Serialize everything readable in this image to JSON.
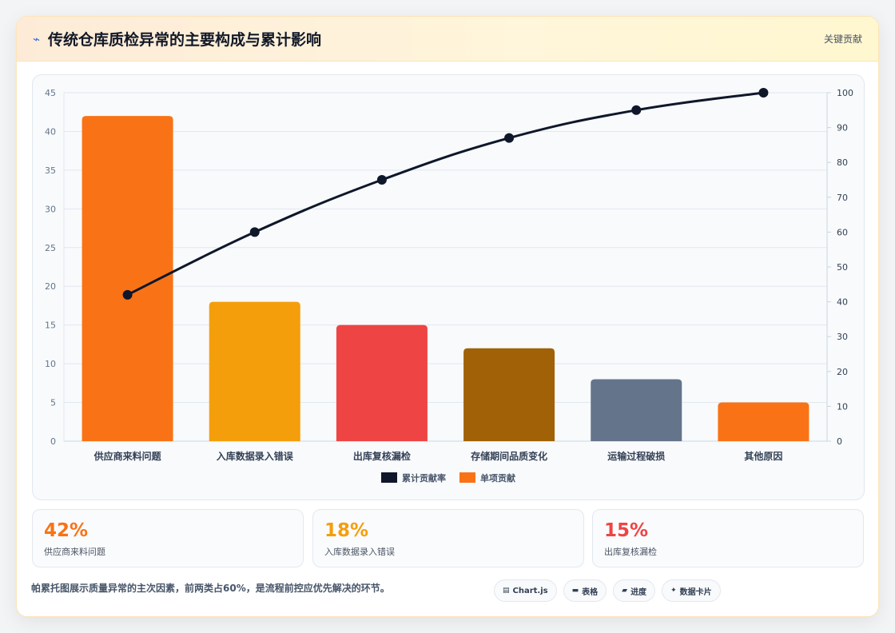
{
  "header": {
    "icon": "bolt-icon",
    "title": "传统仓库质检异常的主要构成与累计影响",
    "right_label": "关键贡献"
  },
  "chart_data": {
    "type": "bar",
    "categories": [
      "供应商来料问题",
      "入库数据录入错误",
      "出库复核漏检",
      "存储期间品质变化",
      "运输过程破损",
      "其他原因"
    ],
    "series": [
      {
        "name": "单项贡献",
        "type": "bar",
        "values": [
          42,
          18,
          15,
          12,
          8,
          5
        ],
        "colors": [
          "#f97316",
          "#f59e0b",
          "#ef4444",
          "#a16207",
          "#64748b",
          "#f97316"
        ],
        "axis": "left"
      },
      {
        "name": "累计贡献率",
        "type": "line",
        "values": [
          42,
          60,
          75,
          87,
          95,
          100
        ],
        "color": "#0f172a",
        "axis": "right"
      }
    ],
    "y_left": {
      "min": 0,
      "max": 45,
      "ticks": [
        0,
        5,
        10,
        15,
        20,
        25,
        30,
        35,
        40,
        45
      ]
    },
    "y_right": {
      "min": 0,
      "max": 100,
      "ticks": [
        0,
        10,
        20,
        30,
        40,
        50,
        60,
        70,
        80,
        90,
        100
      ]
    },
    "grid": true,
    "legend": {
      "position": "bottom",
      "entries": [
        {
          "label": "累计贡献率",
          "color": "#0f172a"
        },
        {
          "label": "单项贡献",
          "color": "#f97316"
        }
      ]
    }
  },
  "stats": [
    {
      "value": "42%",
      "label": "供应商来料问题",
      "color": "#f97316"
    },
    {
      "value": "18%",
      "label": "入库数据录入错误",
      "color": "#f59e0b"
    },
    {
      "value": "15%",
      "label": "出库复核漏检",
      "color": "#ef4444"
    }
  ],
  "footer": {
    "note": "帕累托图展示质量异常的主次因素，前两类占60%，是流程前控应优先解决的环节。",
    "tags": [
      {
        "icon": "chart-icon",
        "glyph": "▤",
        "label": "Chart.js"
      },
      {
        "icon": "table-icon",
        "glyph": "▬",
        "label": "表格"
      },
      {
        "icon": "progress-icon",
        "glyph": "▰",
        "label": "进度"
      },
      {
        "icon": "sparkle-icon",
        "glyph": "✦",
        "label": "数据卡片"
      }
    ]
  }
}
